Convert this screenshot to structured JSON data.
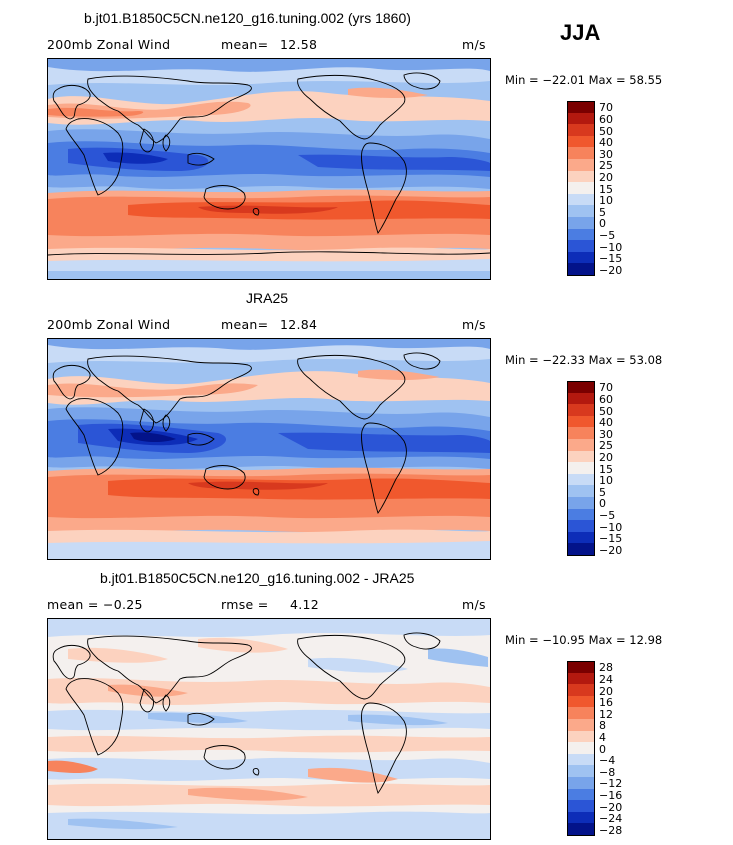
{
  "season": "JJA",
  "panels": [
    {
      "title": "b.jt01.B1850C5CN.ne120_g16.tuning.002 (yrs 1860)",
      "left_label": "200mb Zonal Wind",
      "stat_label": "mean=",
      "stat_value": "12.58",
      "units": "m/s",
      "minmax": "Min = −22.01 Max =  58.55",
      "colorbar_labels": [
        "70",
        "60",
        "50",
        "40",
        "30",
        "25",
        "20",
        "15",
        "10",
        "5",
        "0",
        "−5",
        "−10",
        "−15",
        "−20"
      ]
    },
    {
      "title": "JRA25",
      "left_label": "200mb Zonal Wind",
      "stat_label": "mean=",
      "stat_value": "12.84",
      "units": "m/s",
      "minmax": "Min = −22.33 Max =  53.08",
      "colorbar_labels": [
        "70",
        "60",
        "50",
        "40",
        "30",
        "25",
        "20",
        "15",
        "10",
        "5",
        "0",
        "−5",
        "−10",
        "−15",
        "−20"
      ]
    },
    {
      "title": "b.jt01.B1850C5CN.ne120_g16.tuning.002 - JRA25",
      "left_label": "mean =   −0.25",
      "stat_label": "rmse =",
      "stat_value": "4.12",
      "units": "m/s",
      "minmax": "Min = −10.95 Max =  12.98",
      "colorbar_labels": [
        "28",
        "24",
        "20",
        "16",
        "12",
        "8",
        "4",
        "0",
        "−4",
        "−8",
        "−12",
        "−16",
        "−20",
        "−24",
        "−28"
      ]
    }
  ],
  "colorbar_colors": [
    "#7a0000",
    "#b3190f",
    "#d8391e",
    "#f0582d",
    "#f7835c",
    "#fba98a",
    "#fcd2bf",
    "#f4f0ee",
    "#c8dbf6",
    "#9fc2f1",
    "#78a4ea",
    "#4b7de2",
    "#2b55d6",
    "#0d2db8",
    "#03138a"
  ]
}
